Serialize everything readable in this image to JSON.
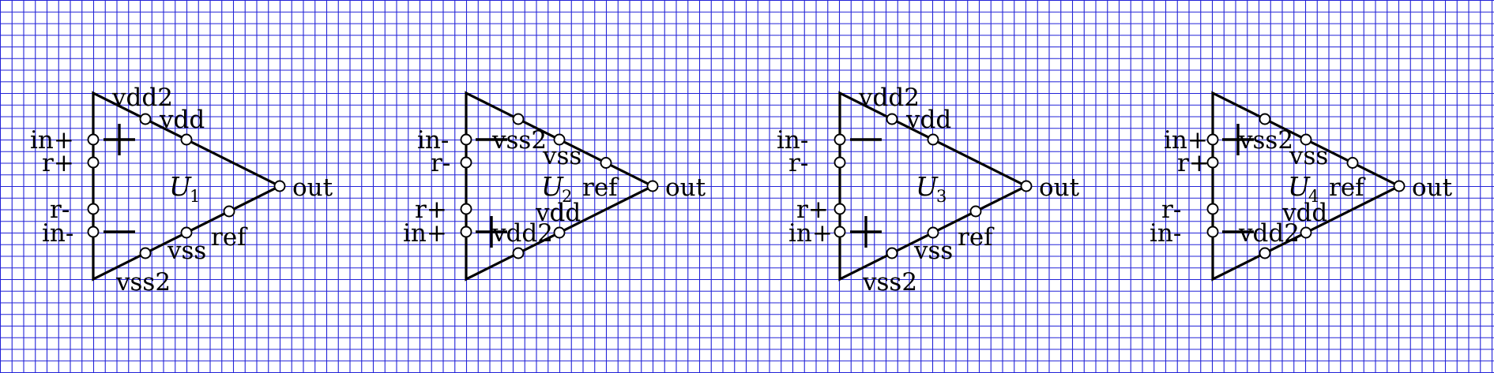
{
  "colors": {
    "grid": "#2323d8",
    "ink": "#000000",
    "background": "#ffffff"
  },
  "amplifiers": [
    {
      "name": "U",
      "index": "1",
      "mirrored": false,
      "labels": {
        "inp": "in+",
        "rtop": "r+",
        "rbot": "r-",
        "inn": "in-",
        "t1": "vdd2",
        "t2": "vdd",
        "b1": "vss2",
        "b2": "vss",
        "ref": "ref",
        "out": "out"
      }
    },
    {
      "name": "U",
      "index": "2",
      "mirrored": true,
      "labels": {
        "inp": "in-",
        "rtop": "r-",
        "rbot": "r+",
        "inn": "in+",
        "t1": "vss2",
        "t2": "vss",
        "b1": "vdd2",
        "b2": "vdd",
        "ref": "ref",
        "out": "out"
      }
    },
    {
      "name": "U",
      "index": "3",
      "mirrored": false,
      "labels": {
        "inp": "in-",
        "rtop": "r-",
        "rbot": "r+",
        "inn": "in+",
        "t1": "vdd2",
        "t2": "vdd",
        "b1": "vss2",
        "b2": "vss",
        "ref": "ref",
        "out": "out"
      }
    },
    {
      "name": "U",
      "index": "4",
      "mirrored": true,
      "labels": {
        "inp": "in+",
        "rtop": "r+",
        "rbot": "r-",
        "inn": "in-",
        "t1": "vss2",
        "t2": "vss",
        "b1": "vdd2",
        "b2": "vdd",
        "ref": "ref",
        "out": "out"
      }
    }
  ]
}
